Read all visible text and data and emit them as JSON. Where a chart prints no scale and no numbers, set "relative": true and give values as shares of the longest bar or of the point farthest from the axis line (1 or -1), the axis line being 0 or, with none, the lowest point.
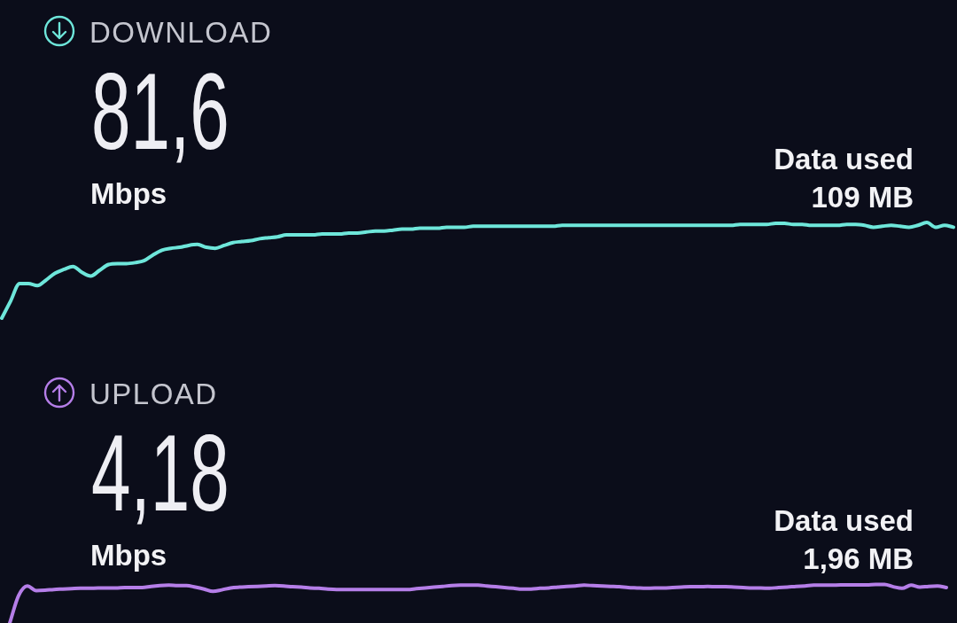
{
  "chart_data": [
    {
      "type": "line",
      "title": "DOWNLOAD",
      "annotations": [
        "81,6",
        "Mbps",
        "Data used",
        "109 MB"
      ],
      "relative": true,
      "color": "#6ee6da",
      "categories": [
        null,
        null,
        null,
        null,
        null,
        null,
        null,
        null,
        null,
        null,
        null,
        null,
        null,
        null,
        null,
        null,
        null,
        null,
        null,
        null,
        null,
        null,
        null,
        null,
        null,
        null,
        null,
        null,
        null,
        null,
        null,
        null,
        null,
        null,
        null,
        null,
        null,
        null,
        null,
        null,
        null,
        null,
        null,
        null,
        null,
        null,
        null,
        null,
        null,
        null,
        null,
        null,
        null,
        null,
        null,
        null,
        null,
        null,
        null,
        null,
        null,
        null,
        null,
        null,
        null,
        null,
        null,
        null,
        null,
        null,
        null,
        null,
        null,
        null,
        null,
        null,
        null,
        null,
        null,
        null,
        null,
        null,
        null,
        null,
        null,
        null,
        null,
        null,
        null,
        null,
        null,
        null,
        null,
        null,
        null,
        null,
        null,
        null,
        null,
        null,
        null,
        null,
        null,
        null,
        null,
        null,
        null,
        null
      ],
      "values": [
        0,
        0.18,
        0.36,
        0.36,
        0.34,
        0.4,
        0.47,
        0.51,
        0.54,
        0.48,
        0.44,
        0.5,
        0.56,
        0.57,
        0.57,
        0.58,
        0.6,
        0.66,
        0.71,
        0.73,
        0.74,
        0.76,
        0.77,
        0.74,
        0.73,
        0.76,
        0.79,
        0.8,
        0.81,
        0.83,
        0.84,
        0.85,
        0.87,
        0.87,
        0.87,
        0.87,
        0.88,
        0.88,
        0.88,
        0.89,
        0.89,
        0.9,
        0.91,
        0.91,
        0.92,
        0.93,
        0.93,
        0.94,
        0.94,
        0.94,
        0.95,
        0.95,
        0.95,
        0.96,
        0.96,
        0.96,
        0.96,
        0.96,
        0.96,
        0.96,
        0.96,
        0.96,
        0.96,
        0.97,
        0.97,
        0.97,
        0.97,
        0.97,
        0.97,
        0.97,
        0.97,
        0.97,
        0.97,
        0.97,
        0.97,
        0.97,
        0.97,
        0.97,
        0.97,
        0.97,
        0.97,
        0.97,
        0.97,
        0.98,
        0.98,
        0.98,
        0.98,
        0.99,
        0.99,
        0.98,
        0.98,
        0.97,
        0.97,
        0.97,
        0.97,
        0.98,
        0.98,
        0.97,
        0.95,
        0.96,
        0.97,
        0.96,
        0.95,
        0.97,
        1,
        0.95,
        0.97,
        0.95
      ]
    },
    {
      "type": "line",
      "title": "UPLOAD",
      "annotations": [
        "4,18",
        "Mbps",
        "Data used",
        "1,96 MB"
      ],
      "relative": true,
      "color": "#b57ee8",
      "categories": [
        null,
        null,
        null,
        null,
        null,
        null,
        null,
        null,
        null,
        null,
        null,
        null,
        null,
        null,
        null,
        null,
        null,
        null,
        null,
        null,
        null,
        null,
        null,
        null,
        null,
        null,
        null,
        null,
        null,
        null,
        null,
        null,
        null,
        null,
        null,
        null,
        null,
        null,
        null,
        null,
        null,
        null,
        null,
        null,
        null,
        null,
        null,
        null,
        null,
        null,
        null,
        null,
        null,
        null,
        null,
        null,
        null,
        null,
        null,
        null,
        null,
        null,
        null,
        null,
        null,
        null,
        null,
        null,
        null,
        null,
        null,
        null,
        null,
        null,
        null,
        null,
        null,
        null,
        null,
        null,
        null,
        null,
        null,
        null,
        null,
        null,
        null,
        null,
        null,
        null,
        null,
        null,
        null,
        null,
        null,
        null,
        null,
        null,
        null,
        null,
        null,
        null,
        null,
        null,
        null,
        null,
        null
      ],
      "values": [
        0,
        0.71,
        0.96,
        0.84,
        0.85,
        0.87,
        0.88,
        0.89,
        0.9,
        0.9,
        0.91,
        0.91,
        0.91,
        0.92,
        0.92,
        0.92,
        0.95,
        0.97,
        0.98,
        0.97,
        0.97,
        0.93,
        0.88,
        0.82,
        0.86,
        0.91,
        0.93,
        0.94,
        0.95,
        0.96,
        0.97,
        0.96,
        0.94,
        0.93,
        0.91,
        0.9,
        0.88,
        0.87,
        0.87,
        0.87,
        0.87,
        0.87,
        0.87,
        0.87,
        0.87,
        0.87,
        0.89,
        0.91,
        0.93,
        0.95,
        0.97,
        0.98,
        0.98,
        0.98,
        0.96,
        0.94,
        0.92,
        0.9,
        0.88,
        0.88,
        0.9,
        0.91,
        0.93,
        0.95,
        0.96,
        0.98,
        0.97,
        0.96,
        0.95,
        0.94,
        0.92,
        0.91,
        0.9,
        0.91,
        0.91,
        0.92,
        0.93,
        0.94,
        0.94,
        0.95,
        0.94,
        0.94,
        0.93,
        0.92,
        0.91,
        0.91,
        0.9,
        0.92,
        0.93,
        0.95,
        0.96,
        0.98,
        0.98,
        0.98,
        0.99,
        0.99,
        0.99,
        0.99,
        1,
        1,
        0.94,
        0.9,
        0.98,
        0.93,
        0.95,
        0.96,
        0.92
      ]
    }
  ]
}
